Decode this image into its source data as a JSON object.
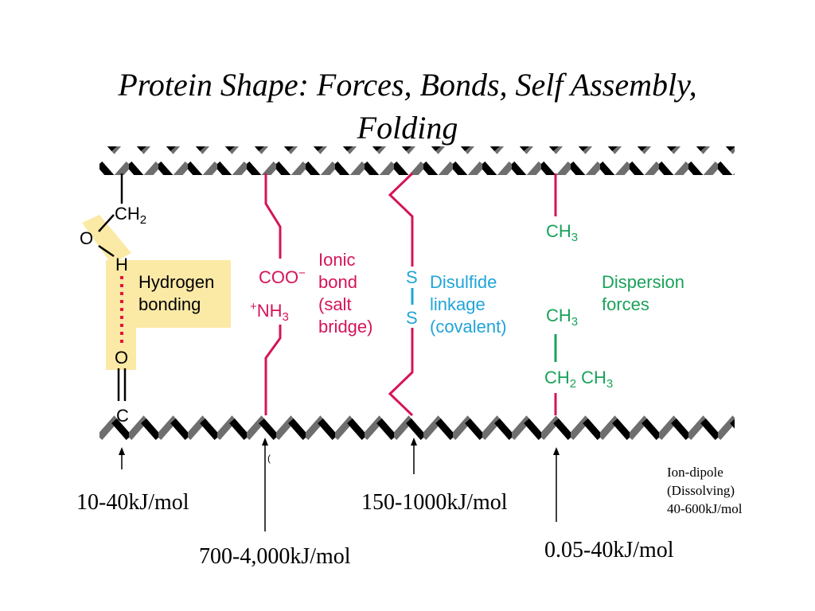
{
  "slide": {
    "title_line1": "Protein Shape: Forces, Bonds, Self Assembly,",
    "title_line2": "Folding"
  },
  "colors": {
    "backbone_black": "#000000",
    "backbone_gray": "#6e6e6e",
    "hydrogen_highlight": "#fbe9a6",
    "hydrogen_dots": "#e0163f",
    "ionic": "#d4145a",
    "disulfide": "#20a4d8",
    "dispersion": "#1aa25a"
  },
  "hydrogen": {
    "ch2": "CH",
    "ch2_sub": "2",
    "o_top": "O",
    "h": "H",
    "label_line1": "Hydrogen",
    "label_line2": "bonding",
    "o_bottom": "O",
    "c": "C"
  },
  "ionic": {
    "coo": "COO",
    "coo_sup": "−",
    "nh3_sup": "+",
    "nh3": "NH",
    "nh3_sub": "3",
    "label_line1": "Ionic",
    "label_line2": "bond",
    "label_line3": "(salt",
    "label_line4": "bridge)"
  },
  "disulfide": {
    "s_top": "S",
    "s_bottom": "S",
    "label_line1": "Disulfide",
    "label_line2": "linkage",
    "label_line3": "(covalent)"
  },
  "dispersion": {
    "ch3_top": "CH",
    "ch3_top_sub": "3",
    "label_line1": "Dispersion",
    "label_line2": "forces",
    "ch3_mid": "CH",
    "ch3_mid_sub": "3",
    "ch2": "CH",
    "ch2_sub": "2",
    "ch3_right": "CH",
    "ch3_right_sub": "3"
  },
  "energies": {
    "hydrogen": "10-40kJ/mol",
    "ionic": "700-4,000kJ/mol",
    "disulfide": "150-1000kJ/mol",
    "dispersion": "0.05-40kJ/mol",
    "ion_dipole_line1": "Ion-dipole",
    "ion_dipole_line2": "(Dissolving)",
    "ion_dipole_line3": "40-600kJ/mol",
    "stray_mark": "("
  }
}
